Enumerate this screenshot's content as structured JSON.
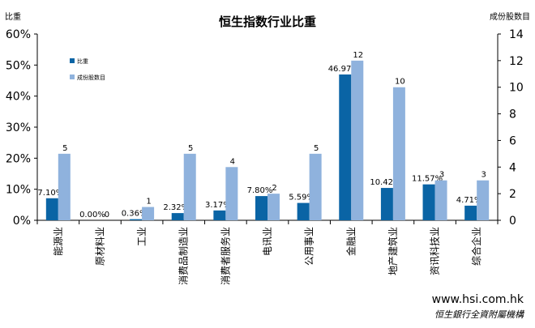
{
  "chart_data": {
    "type": "bar",
    "title": "恒生指数行业比重",
    "ylabel_left": "比重",
    "ylabel_right": "成份股数目",
    "y_left_ticks": [
      "0%",
      "10%",
      "20%",
      "30%",
      "40%",
      "50%",
      "60%"
    ],
    "y_right_ticks": [
      "0",
      "2",
      "4",
      "6",
      "8",
      "10",
      "12",
      "14"
    ],
    "ylim_left": [
      0,
      60
    ],
    "ylim_right": [
      0,
      14
    ],
    "categories": [
      "能源业",
      "原材料业",
      "工业",
      "消费品制造业",
      "消费者服务业",
      "电讯业",
      "公用事业",
      "金融业",
      "地产建筑业",
      "资讯科技业",
      "综合企业"
    ],
    "series": [
      {
        "name": "比重",
        "axis": "left",
        "color": "#0a64a5",
        "values": [
          7.1,
          0.0,
          0.36,
          2.32,
          3.17,
          7.8,
          5.59,
          46.97,
          10.42,
          11.57,
          4.71
        ],
        "labels": [
          "7.10%",
          "0.00%",
          "0.36%",
          "2.32%",
          "3.17%",
          "7.80%",
          "5.59%",
          "46.97%",
          "10.42%",
          "11.57%",
          "4.71%"
        ]
      },
      {
        "name": "成份股数目",
        "axis": "right",
        "color": "#8fb2dd",
        "values": [
          5,
          0,
          1,
          5,
          4,
          2,
          5,
          12,
          10,
          3,
          3
        ],
        "labels": [
          "5",
          "0",
          "1",
          "5",
          "4",
          "2",
          "5",
          "12",
          "10",
          "3",
          "3"
        ]
      }
    ],
    "legend_position": "top-left",
    "grid": false
  },
  "source": {
    "url": "www.hsi.com.hk",
    "org": "恒生銀行全資附屬機構"
  }
}
